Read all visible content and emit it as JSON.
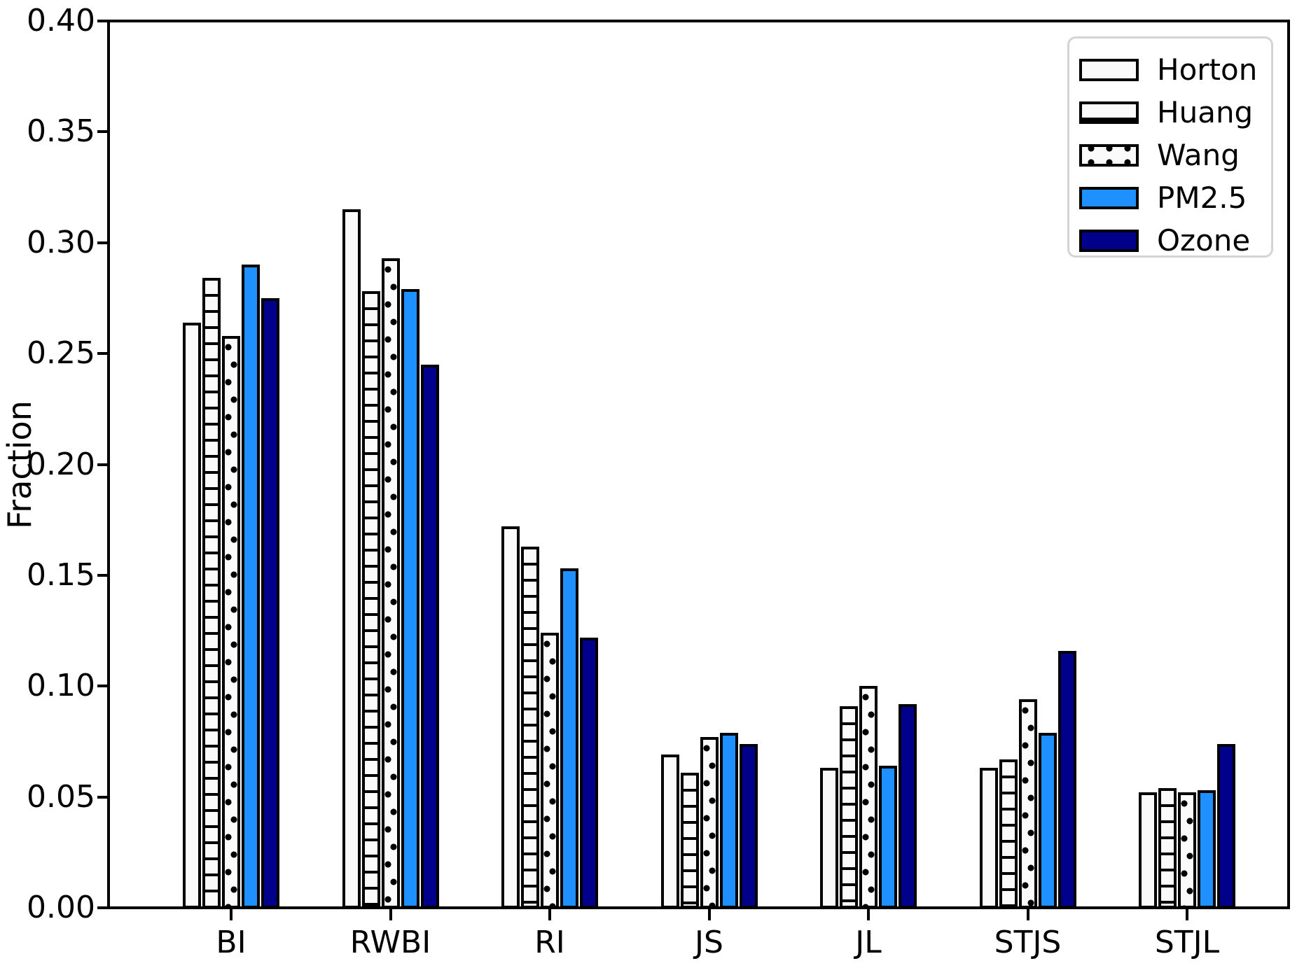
{
  "chart_data": {
    "type": "bar",
    "title": "",
    "xlabel": "",
    "ylabel": "Fraction",
    "ylim": [
      0.0,
      0.4
    ],
    "yticks": [
      0.0,
      0.05,
      0.1,
      0.15,
      0.2,
      0.25,
      0.3,
      0.35,
      0.4
    ],
    "ytick_labels": [
      "0.00",
      "0.05",
      "0.10",
      "0.15",
      "0.20",
      "0.25",
      "0.30",
      "0.35",
      "0.40"
    ],
    "categories": [
      "BI",
      "RWBI",
      "RI",
      "JS",
      "JL",
      "STJS",
      "STJL"
    ],
    "series": [
      {
        "name": "Horton",
        "fill": "#fafafa",
        "hatch": "none",
        "values": [
          0.264,
          0.315,
          0.172,
          0.069,
          0.063,
          0.063,
          0.052
        ]
      },
      {
        "name": "Huang",
        "fill": "#fafafa",
        "hatch": "hlines",
        "values": [
          0.284,
          0.278,
          0.163,
          0.061,
          0.091,
          0.067,
          0.054
        ]
      },
      {
        "name": "Wang",
        "fill": "#fafafa",
        "hatch": "dots",
        "values": [
          0.258,
          0.293,
          0.124,
          0.077,
          0.1,
          0.094,
          0.052
        ]
      },
      {
        "name": "PM2.5",
        "fill": "#1e90ff",
        "hatch": "none",
        "values": [
          0.29,
          0.279,
          0.153,
          0.079,
          0.064,
          0.079,
          0.053
        ]
      },
      {
        "name": "Ozone",
        "fill": "#00008b",
        "hatch": "none",
        "values": [
          0.275,
          0.245,
          0.122,
          0.074,
          0.092,
          0.116,
          0.074
        ]
      }
    ],
    "legend": {
      "position": "upper-right",
      "entries": [
        "Horton",
        "Huang",
        "Wang",
        "PM2.5",
        "Ozone"
      ]
    },
    "colors": {
      "bar_edge": "#000000",
      "white_bar_face": "#fafafa",
      "pm25_blue": "#1e90ff",
      "ozone_navy": "#00008b",
      "legend_border": "#d4d4d4",
      "background": "#ffffff"
    },
    "grid": false
  }
}
